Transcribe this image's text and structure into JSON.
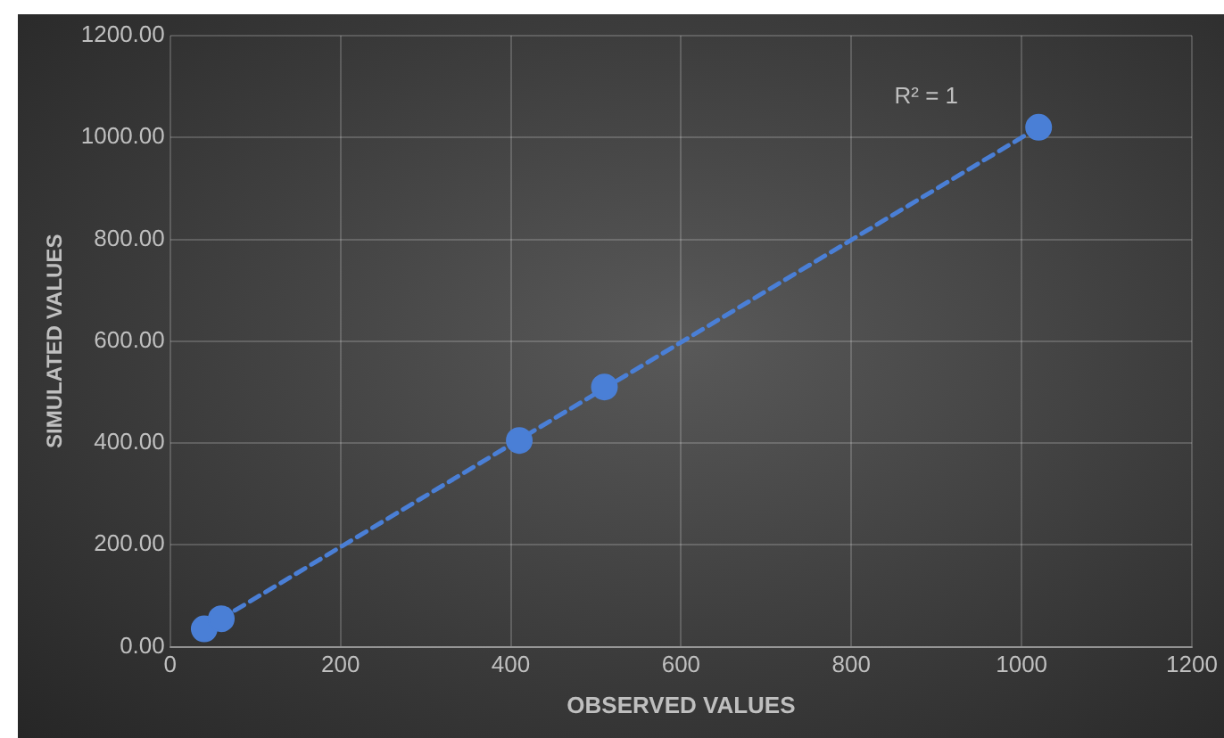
{
  "chart_data": {
    "type": "scatter",
    "xlabel": "OBSERVED VALUES",
    "ylabel": "SIMULATED VALUES",
    "series": [
      {
        "type": "scatter",
        "color": "#4a7fd6",
        "x": [
          40,
          60,
          410,
          510,
          1020
        ],
        "values": [
          35,
          55,
          405,
          510,
          1020
        ]
      },
      {
        "type": "line",
        "color": "#4a7fd6",
        "x": [
          40,
          1020
        ],
        "values": [
          35,
          1020
        ],
        "line_style": "dashed",
        "marker": "none"
      }
    ],
    "xlim": [
      0,
      1200
    ],
    "xticks": [
      0,
      200,
      400,
      600,
      800,
      1000,
      1200
    ],
    "ylim": [
      0,
      1200
    ],
    "yticks": [
      {
        "value": 0,
        "label": "0.00"
      },
      {
        "value": 200,
        "label": "200.00"
      },
      {
        "value": 400,
        "label": "400.00"
      },
      {
        "value": 600,
        "label": "600.00"
      },
      {
        "value": 800,
        "label": "800.00"
      },
      {
        "value": 1000,
        "label": "1000.00"
      },
      {
        "value": 1200,
        "label": "1200.00"
      }
    ],
    "annotations": [
      "R² = 1"
    ],
    "grid": true,
    "legend": false,
    "marker": "circle"
  }
}
